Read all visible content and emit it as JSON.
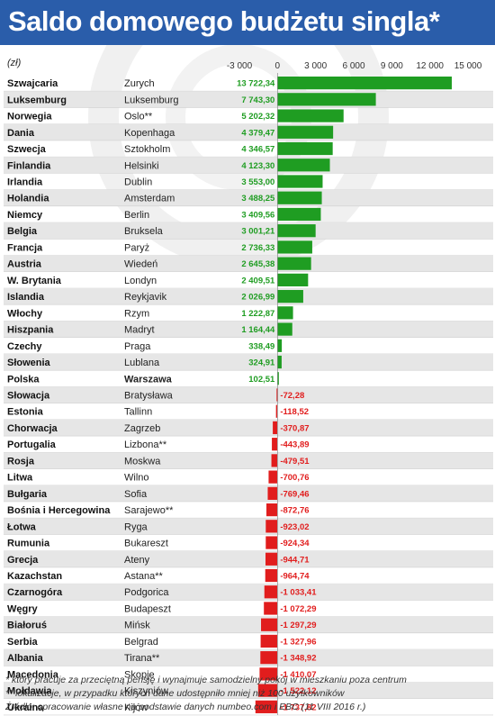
{
  "header": {
    "title": "Saldo domowego budżetu singla*"
  },
  "unit_label": "(zł)",
  "colors": {
    "header_bg": "#2a5daa",
    "positive": "#1f9d22",
    "negative": "#e11d1d",
    "highlight": "#1f9d22",
    "row_alt": "#e6e6e6"
  },
  "chart_data": {
    "type": "bar",
    "orientation": "horizontal",
    "title": "Saldo domowego budżetu singla*",
    "unit": "(zł)",
    "xlim": [
      -3000,
      15000
    ],
    "x_ticks": [
      -3000,
      0,
      3000,
      6000,
      9000,
      12000,
      15000
    ],
    "x_tick_labels": [
      "-3 000",
      "0",
      "3 000",
      "6 000",
      "9 000",
      "12 000",
      "15 000"
    ],
    "grid": false,
    "highlight_country": "Polska",
    "rows": [
      {
        "country": "Szwajcaria",
        "city": "Zurych",
        "value": 13722.34,
        "label": "13 722,34"
      },
      {
        "country": "Luksemburg",
        "city": "Luksemburg",
        "value": 7743.3,
        "label": "7 743,30"
      },
      {
        "country": "Norwegia",
        "city": "Oslo**",
        "value": 5202.32,
        "label": "5 202,32"
      },
      {
        "country": "Dania",
        "city": "Kopenhaga",
        "value": 4379.47,
        "label": "4 379,47"
      },
      {
        "country": "Szwecja",
        "city": "Sztokholm",
        "value": 4346.57,
        "label": "4 346,57"
      },
      {
        "country": "Finlandia",
        "city": "Helsinki",
        "value": 4123.3,
        "label": "4 123,30"
      },
      {
        "country": "Irlandia",
        "city": "Dublin",
        "value": 3553.0,
        "label": "3 553,00"
      },
      {
        "country": "Holandia",
        "city": "Amsterdam",
        "value": 3488.25,
        "label": "3 488,25"
      },
      {
        "country": "Niemcy",
        "city": "Berlin",
        "value": 3409.56,
        "label": "3 409,56"
      },
      {
        "country": "Belgia",
        "city": "Bruksela",
        "value": 3001.21,
        "label": "3 001,21"
      },
      {
        "country": "Francja",
        "city": "Paryż",
        "value": 2736.33,
        "label": "2 736,33"
      },
      {
        "country": "Austria",
        "city": "Wiedeń",
        "value": 2645.38,
        "label": "2 645,38"
      },
      {
        "country": "W. Brytania",
        "city": "Londyn",
        "value": 2409.51,
        "label": "2 409,51"
      },
      {
        "country": "Islandia",
        "city": "Reykjavik",
        "value": 2026.99,
        "label": "2 026,99"
      },
      {
        "country": "Włochy",
        "city": "Rzym",
        "value": 1222.87,
        "label": "1 222,87"
      },
      {
        "country": "Hiszpania",
        "city": "Madryt",
        "value": 1164.44,
        "label": "1 164,44"
      },
      {
        "country": "Czechy",
        "city": "Praga",
        "value": 338.49,
        "label": "338,49"
      },
      {
        "country": "Słowenia",
        "city": "Lublana",
        "value": 324.91,
        "label": "324,91"
      },
      {
        "country": "Polska",
        "city": "Warszawa",
        "value": 102.51,
        "label": "102,51"
      },
      {
        "country": "Słowacja",
        "city": "Bratysława",
        "value": -72.28,
        "label": "-72,28"
      },
      {
        "country": "Estonia",
        "city": "Tallinn",
        "value": -118.52,
        "label": "-118,52"
      },
      {
        "country": "Chorwacja",
        "city": "Zagrzeb",
        "value": -370.87,
        "label": "-370,87"
      },
      {
        "country": "Portugalia",
        "city": "Lizbona**",
        "value": -443.89,
        "label": "-443,89"
      },
      {
        "country": "Rosja",
        "city": "Moskwa",
        "value": -479.51,
        "label": "-479,51"
      },
      {
        "country": "Litwa",
        "city": "Wilno",
        "value": -700.76,
        "label": "-700,76"
      },
      {
        "country": "Bułgaria",
        "city": "Sofia",
        "value": -769.46,
        "label": "-769,46"
      },
      {
        "country": "Bośnia i Hercegowina",
        "city": "Sarajewo**",
        "value": -872.76,
        "label": "-872,76"
      },
      {
        "country": "Łotwa",
        "city": "Ryga",
        "value": -923.02,
        "label": "-923,02"
      },
      {
        "country": "Rumunia",
        "city": "Bukareszt",
        "value": -924.34,
        "label": "-924,34"
      },
      {
        "country": "Grecja",
        "city": "Ateny",
        "value": -944.71,
        "label": "-944,71"
      },
      {
        "country": "Kazachstan",
        "city": "Astana**",
        "value": -964.74,
        "label": "-964,74"
      },
      {
        "country": "Czarnogóra",
        "city": "Podgorica",
        "value": -1033.41,
        "label": "-1 033,41"
      },
      {
        "country": "Węgry",
        "city": "Budapeszt",
        "value": -1072.29,
        "label": "-1 072,29"
      },
      {
        "country": "Białoruś",
        "city": "Mińsk",
        "value": -1297.29,
        "label": "-1 297,29"
      },
      {
        "country": "Serbia",
        "city": "Belgrad",
        "value": -1327.96,
        "label": "-1 327,96"
      },
      {
        "country": "Albania",
        "city": "Tirana**",
        "value": -1348.92,
        "label": "-1 348,92"
      },
      {
        "country": "Macedonia",
        "city": "Skopje",
        "value": -1410.07,
        "label": "-1 410,07"
      },
      {
        "country": "Mołdawia",
        "city": "Kiszyniów",
        "value": -1522.12,
        "label": "-1 522,12"
      },
      {
        "country": "Ukraina",
        "city": "Kijów",
        "value": -1737.82,
        "label": "-1 737,82"
      }
    ]
  },
  "footnotes": {
    "note1": "* który pracuje za przeciętną pensję i wynajmuje samodzielny pokój w mieszkaniu poza centrum",
    "note2": "** lokalizacje, w przypadku których dane udostępniło mniej niż 100 użytkowników",
    "source": "Źródło: opracowanie własne na podstawie danych numbeo.com i EBC (11 VIII 2016 r.)"
  }
}
